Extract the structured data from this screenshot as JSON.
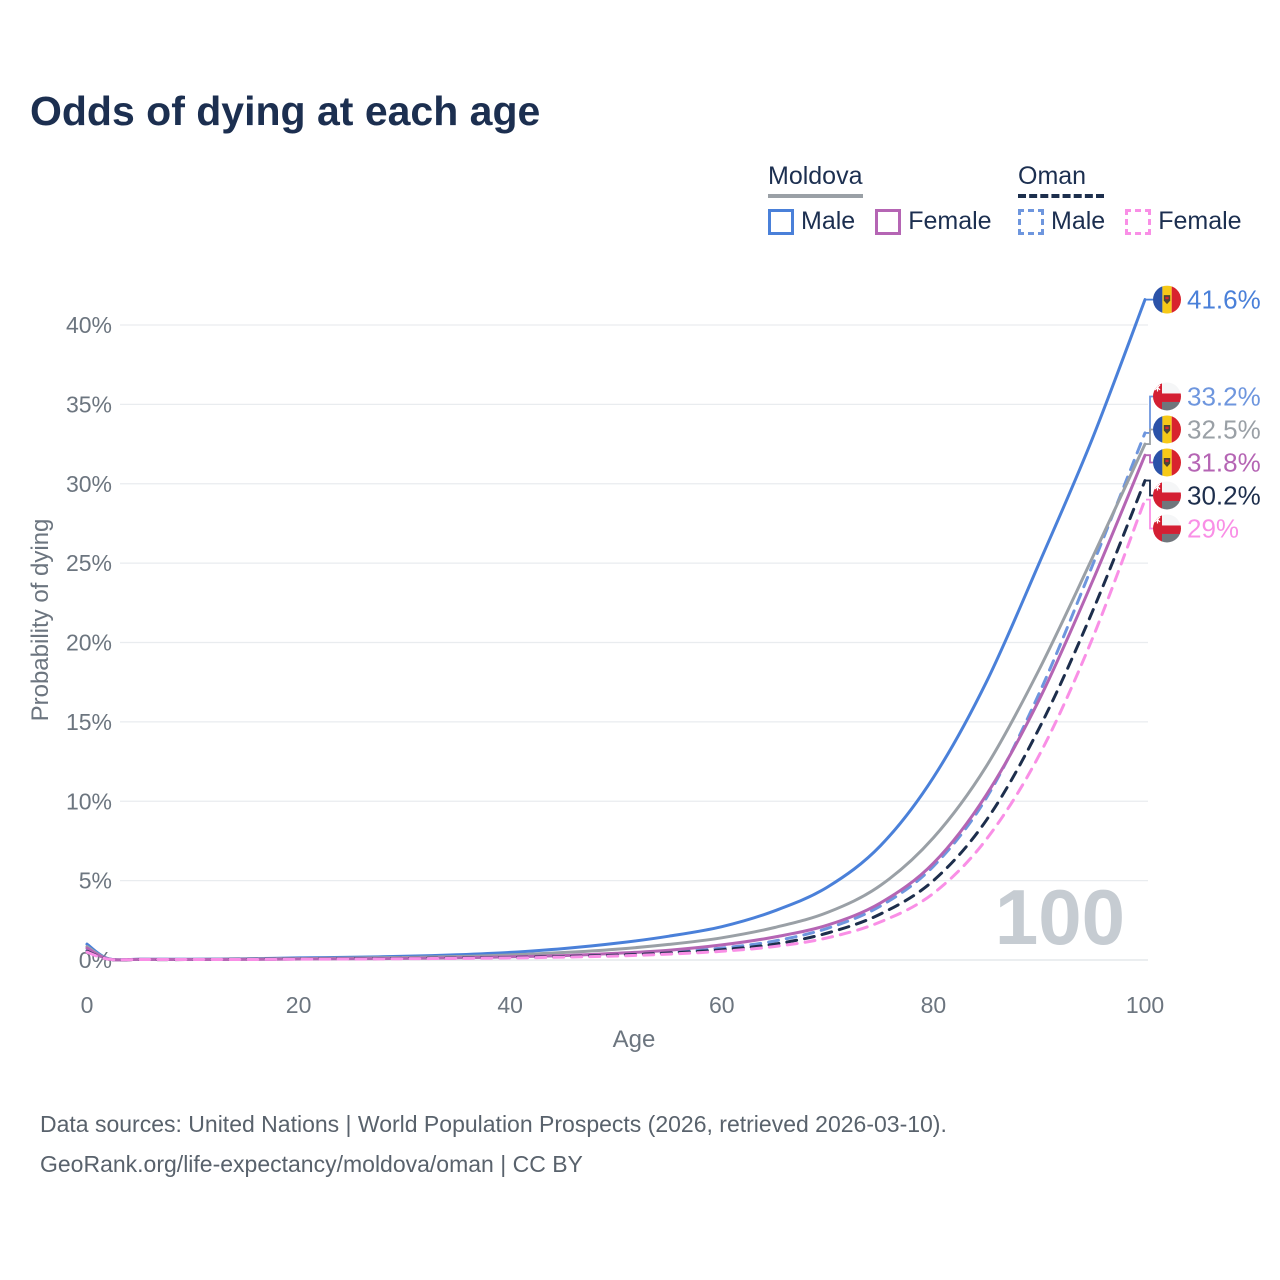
{
  "title": "Odds of dying at each age",
  "legend": {
    "groups": [
      {
        "name": "Moldova",
        "line_style": "solid",
        "underline_color": "#9aa0a6",
        "items": [
          {
            "label": "Male",
            "color": "#4a80d9"
          },
          {
            "label": "Female",
            "color": "#b565b4"
          }
        ]
      },
      {
        "name": "Oman",
        "line_style": "dashed",
        "underline_color": "#1d2f4d",
        "items": [
          {
            "label": "Male",
            "color": "#6e96de"
          },
          {
            "label": "Female",
            "color": "#f98fe6"
          }
        ]
      }
    ]
  },
  "chart_data": {
    "type": "line",
    "title": "Odds of dying at each age",
    "xlabel": "Age",
    "ylabel": "Probability of dying",
    "xlim": [
      0,
      100
    ],
    "ylim": [
      0,
      43.5
    ],
    "xticks": [
      0,
      20,
      40,
      60,
      80,
      100
    ],
    "yticks": [
      0,
      5,
      10,
      15,
      20,
      25,
      30,
      35,
      40
    ],
    "ytick_suffix": "%",
    "grid": "horizontal",
    "legend_position": "top-right",
    "watermark": "100",
    "ages": [
      0,
      2,
      5,
      10,
      15,
      20,
      25,
      30,
      35,
      40,
      45,
      50,
      55,
      60,
      65,
      70,
      75,
      80,
      85,
      90,
      95,
      100
    ],
    "series": [
      {
        "name": "Moldova Male",
        "country": "moldova",
        "sex": "male",
        "style": "solid",
        "color": "#4a80d9",
        "end_label": "41.6%",
        "end_value": 41.6,
        "values": [
          1.0,
          0.08,
          0.05,
          0.05,
          0.08,
          0.13,
          0.17,
          0.23,
          0.33,
          0.48,
          0.72,
          1.05,
          1.5,
          2.1,
          3.1,
          4.6,
          7.2,
          11.5,
          17.5,
          25.0,
          32.8,
          41.6
        ]
      },
      {
        "name": "Oman Male",
        "country": "oman",
        "sex": "male",
        "style": "dashed",
        "color": "#6e96de",
        "end_label": "33.2%",
        "end_value": 33.2,
        "values": [
          0.6,
          0.06,
          0.04,
          0.04,
          0.05,
          0.07,
          0.09,
          0.11,
          0.14,
          0.18,
          0.25,
          0.35,
          0.5,
          0.75,
          1.2,
          2.0,
          3.4,
          5.9,
          10.2,
          16.8,
          24.8,
          33.2
        ]
      },
      {
        "name": "Moldova Both sexes",
        "country": "moldova",
        "sex": "both",
        "style": "solid",
        "color": "#9aa0a6",
        "end_label": "32.5%",
        "end_value": 32.5,
        "values": [
          0.85,
          0.07,
          0.04,
          0.04,
          0.06,
          0.09,
          0.12,
          0.16,
          0.22,
          0.32,
          0.47,
          0.68,
          0.98,
          1.4,
          2.05,
          3.0,
          4.7,
          7.7,
          12.2,
          18.3,
          25.3,
          32.5
        ]
      },
      {
        "name": "Moldova Female",
        "country": "moldova",
        "sex": "female",
        "style": "solid",
        "color": "#b565b4",
        "end_label": "31.8%",
        "end_value": 31.8,
        "values": [
          0.75,
          0.06,
          0.04,
          0.03,
          0.04,
          0.06,
          0.08,
          0.1,
          0.14,
          0.2,
          0.28,
          0.42,
          0.62,
          0.95,
          1.45,
          2.2,
          3.6,
          6.1,
          10.4,
          16.4,
          23.8,
          31.8
        ]
      },
      {
        "name": "Oman Both sexes",
        "country": "oman",
        "sex": "both",
        "style": "dashed",
        "color": "#1d2e4c",
        "end_label": "30.2%",
        "end_value": 30.2,
        "values": [
          0.55,
          0.05,
          0.03,
          0.03,
          0.04,
          0.06,
          0.08,
          0.1,
          0.12,
          0.16,
          0.22,
          0.3,
          0.44,
          0.65,
          1.0,
          1.7,
          2.9,
          5.0,
          8.8,
          14.6,
          21.9,
          30.2
        ]
      },
      {
        "name": "Oman Female",
        "country": "oman",
        "sex": "female",
        "style": "dashed",
        "color": "#f98fe6",
        "end_label": "29%",
        "end_value": 29.0,
        "values": [
          0.5,
          0.05,
          0.03,
          0.03,
          0.03,
          0.05,
          0.06,
          0.08,
          0.1,
          0.13,
          0.18,
          0.25,
          0.37,
          0.55,
          0.85,
          1.4,
          2.4,
          4.2,
          7.6,
          12.9,
          20.2,
          29.0
        ]
      }
    ],
    "flags": {
      "moldova": {
        "blue": "#2b52a8",
        "yellow": "#f6c918",
        "red": "#d8232e",
        "emblem": "#4c4436"
      },
      "oman": {
        "red": "#d41f33",
        "white": "#f5f6f7",
        "green_band": "#70767c",
        "emblem": "#ffffff"
      }
    }
  },
  "colors": {
    "title_text": "#1c2f50",
    "axis_text": "#6c757f",
    "gridline": "#e9ecef",
    "watermark": "#c6ccd2",
    "footer_text": "#59626c"
  },
  "footer": {
    "line1": "Data sources: United Nations | World Population Prospects (2026, retrieved 2026-03-10).",
    "line2": "GeoRank.org/life-expectancy/moldova/oman | CC BY"
  }
}
